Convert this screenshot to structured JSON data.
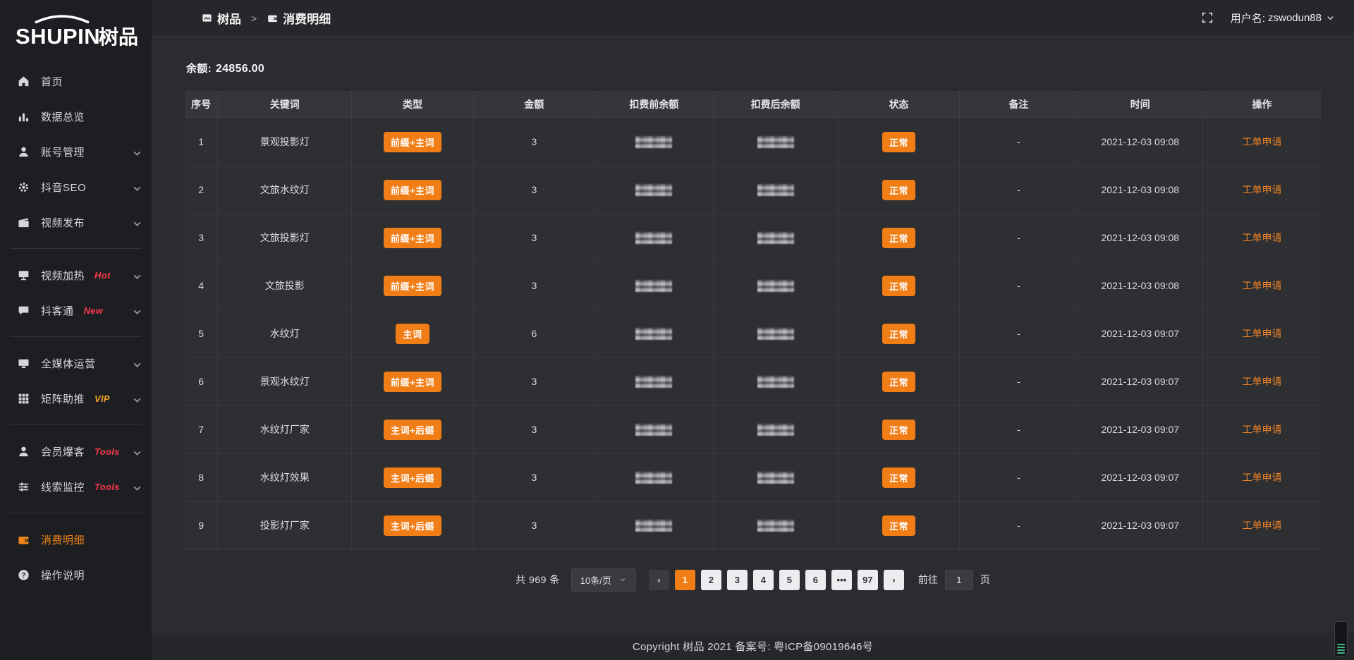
{
  "colors": {
    "accent": "#f07d15",
    "hot_badge": "#f5394a",
    "vip_badge": "#f0a32a",
    "sidebar_bg": "#1d1e21",
    "content_bg": "#2b2c30"
  },
  "logo": {
    "en": "SHUPIN",
    "zh": "树品"
  },
  "sidebar": {
    "groups": [
      {
        "items": [
          {
            "key": "home",
            "icon": "home",
            "label": "首页",
            "chevron": false
          },
          {
            "key": "data-overview",
            "icon": "chart",
            "label": "数据总览",
            "chevron": false
          },
          {
            "key": "account-management",
            "icon": "user",
            "label": "账号管理",
            "chevron": true
          },
          {
            "key": "douyin-seo",
            "icon": "gear",
            "label": "抖音SEO",
            "chevron": true
          },
          {
            "key": "video-publish",
            "icon": "video",
            "label": "视频发布",
            "chevron": true
          }
        ]
      },
      {
        "items": [
          {
            "key": "video-heating",
            "icon": "screen",
            "label": "视频加热",
            "badge": "Hot",
            "badge_color": "#f5394a",
            "chevron": true
          },
          {
            "key": "douketong",
            "icon": "comment",
            "label": "抖客通",
            "badge": "New",
            "badge_color": "#f5394a",
            "chevron": true
          }
        ]
      },
      {
        "items": [
          {
            "key": "omnimedia-operation",
            "icon": "monitor",
            "label": "全媒体运营",
            "chevron": true
          },
          {
            "key": "matrix-boost",
            "icon": "grid",
            "label": "矩阵助推",
            "badge": "VIP",
            "badge_color": "#f0a32a",
            "chevron": true
          }
        ]
      },
      {
        "items": [
          {
            "key": "member-baoke",
            "icon": "user",
            "label": "会员爆客",
            "badge": "Tools",
            "badge_color": "#f5394a",
            "chevron": true
          },
          {
            "key": "clue-monitor",
            "icon": "sliders",
            "label": "线索监控",
            "badge": "Tools",
            "badge_color": "#f5394a",
            "chevron": true
          }
        ]
      },
      {
        "items": [
          {
            "key": "consumption-detail",
            "icon": "wallet",
            "label": "消费明细",
            "active": true
          },
          {
            "key": "operation-guide",
            "icon": "question",
            "label": "操作说明"
          }
        ]
      }
    ]
  },
  "header": {
    "breadcrumb": [
      {
        "icon": "app",
        "label": "树品"
      },
      {
        "icon": "wallet",
        "label": "消费明细"
      }
    ],
    "separator": ">",
    "username_label": "用户名:",
    "username": "zswodun88"
  },
  "main": {
    "balance_label": "余额:",
    "balance_value": "24856.00",
    "table": {
      "columns": [
        "序号",
        "关键词",
        "类型",
        "金额",
        "扣费前余额",
        "扣费后余额",
        "状态",
        "备注",
        "时间",
        "操作"
      ],
      "redacted_columns": [
        "扣费前余额",
        "扣费后余额"
      ],
      "rows": [
        {
          "no": "1",
          "keyword": "景观投影灯",
          "type": "前缀+主词",
          "amount": "3",
          "status": "正常",
          "remark": "-",
          "time": "2021-12-03 09:08",
          "action": "工单申请"
        },
        {
          "no": "2",
          "keyword": "文旅水纹灯",
          "type": "前缀+主词",
          "amount": "3",
          "status": "正常",
          "remark": "-",
          "time": "2021-12-03 09:08",
          "action": "工单申请"
        },
        {
          "no": "3",
          "keyword": "文旅投影灯",
          "type": "前缀+主词",
          "amount": "3",
          "status": "正常",
          "remark": "-",
          "time": "2021-12-03 09:08",
          "action": "工单申请"
        },
        {
          "no": "4",
          "keyword": "文旅投影",
          "type": "前缀+主词",
          "amount": "3",
          "status": "正常",
          "remark": "-",
          "time": "2021-12-03 09:08",
          "action": "工单申请"
        },
        {
          "no": "5",
          "keyword": "水纹灯",
          "type": "主词",
          "amount": "6",
          "status": "正常",
          "remark": "-",
          "time": "2021-12-03 09:07",
          "action": "工单申请"
        },
        {
          "no": "6",
          "keyword": "景观水纹灯",
          "type": "前缀+主词",
          "amount": "3",
          "status": "正常",
          "remark": "-",
          "time": "2021-12-03 09:07",
          "action": "工单申请"
        },
        {
          "no": "7",
          "keyword": "水纹灯厂家",
          "type": "主词+后缀",
          "amount": "3",
          "status": "正常",
          "remark": "-",
          "time": "2021-12-03 09:07",
          "action": "工单申请"
        },
        {
          "no": "8",
          "keyword": "水纹灯效果",
          "type": "主词+后缀",
          "amount": "3",
          "status": "正常",
          "remark": "-",
          "time": "2021-12-03 09:07",
          "action": "工单申请"
        },
        {
          "no": "9",
          "keyword": "投影灯厂家",
          "type": "主词+后缀",
          "amount": "3",
          "status": "正常",
          "remark": "-",
          "time": "2021-12-03 09:07",
          "action": "工单申请"
        }
      ]
    },
    "pagination": {
      "total": "共 969 条",
      "page_size": "10条/页",
      "prev": "‹",
      "next": "›",
      "pages": [
        "1",
        "2",
        "3",
        "4",
        "5",
        "6",
        "•••",
        "97"
      ],
      "active_page": "1",
      "goto_label": "前往",
      "goto_value": "1",
      "goto_suffix": "页"
    }
  },
  "footer": {
    "copyright": "Copyright 树品 2021 备案号: 粤ICP备09019646号"
  }
}
